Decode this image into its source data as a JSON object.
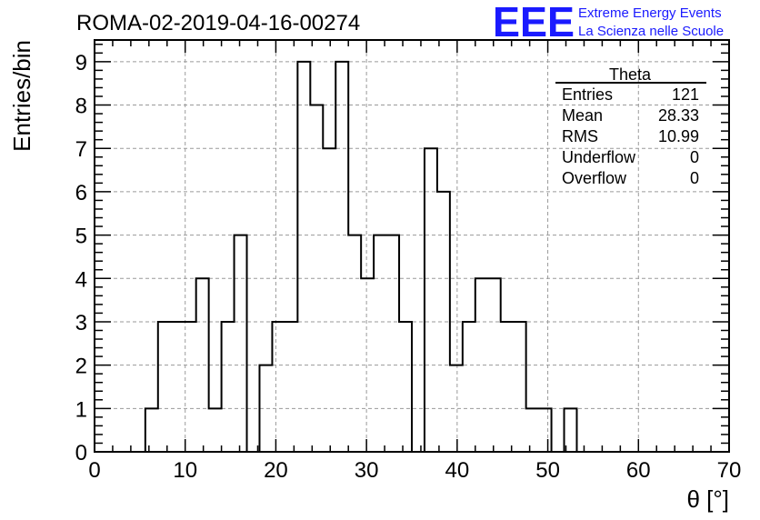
{
  "header": {
    "run_title": "ROMA-02-2019-04-16-00274",
    "logo_text": "EEE",
    "logo_line1": "Extreme Energy Events",
    "logo_line2": "La Scienza nelle Scuole"
  },
  "stats": {
    "title": "Theta",
    "rows": [
      {
        "label": "Entries",
        "value": "121"
      },
      {
        "label": "Mean",
        "value": "28.33"
      },
      {
        "label": "RMS",
        "value": "10.99"
      },
      {
        "label": "Underflow",
        "value": "0"
      },
      {
        "label": "Overflow",
        "value": "0"
      }
    ]
  },
  "chart_data": {
    "type": "bar",
    "subtype": "histogram-step",
    "xlabel": "θ [°]",
    "ylabel": "Entries/bin",
    "xlim": [
      0,
      70
    ],
    "ylim": [
      0,
      9.5
    ],
    "x_ticks": [
      0,
      10,
      20,
      30,
      40,
      50,
      60,
      70
    ],
    "y_ticks": [
      0,
      1,
      2,
      3,
      4,
      5,
      6,
      7,
      8,
      9
    ],
    "grid": true,
    "bin_width": 1.4,
    "bin_edges_start": 0,
    "values": [
      0,
      0,
      0,
      0,
      1,
      3,
      3,
      3,
      4,
      1,
      3,
      5,
      0,
      2,
      3,
      3,
      9,
      8,
      7,
      9,
      5,
      4,
      5,
      5,
      3,
      0,
      7,
      6,
      2,
      3,
      4,
      4,
      3,
      3,
      1,
      1,
      0,
      1,
      0,
      0,
      0,
      0,
      0,
      0,
      0,
      0,
      0,
      0,
      0,
      0
    ],
    "colors": {
      "line": "#000000",
      "grid": "#9a9a9a",
      "logo": "#1a1aff"
    }
  }
}
